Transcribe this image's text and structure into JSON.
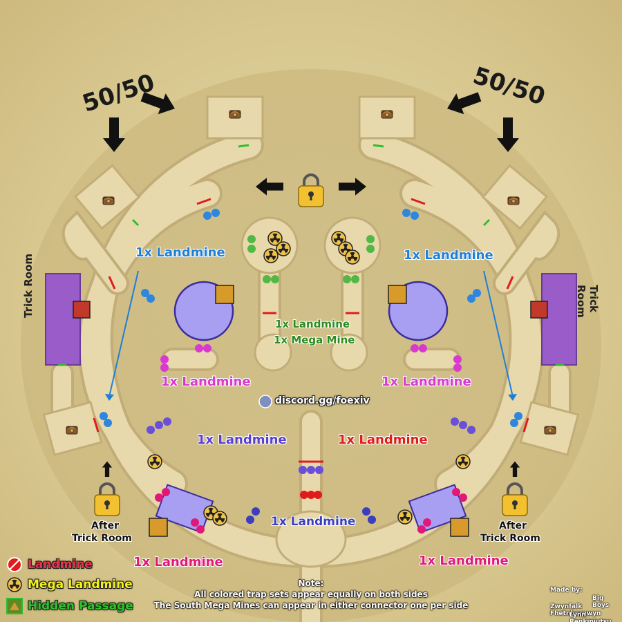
{
  "colors": {
    "floor": "#e8d9ac",
    "floor_edge": "#c9b57f",
    "trick_room": "#9a5cc8",
    "arena": "#a89ff2",
    "landmine_red": "#e01b1b",
    "blue_trap": "#2f86de",
    "pink_trap": "#d83ad0",
    "violet_trap": "#6a4fd8",
    "green_trap": "#52b845",
    "navy_trap": "#3b3fbf",
    "magenta_trap": "#e0187a"
  },
  "labels": {
    "fifty_left": "50/50",
    "fifty_right": "50/50",
    "blue_left": "1x Landmine",
    "blue_right": "1x Landmine",
    "green_center_1": "1x Landmine",
    "green_center_2": "1x Mega Mine",
    "pink_left": "1x Landmine",
    "pink_right": "1x Landmine",
    "violet_left": "1x  Landmine",
    "red_right": "1x  Landmine",
    "navy_bottom": "1x Landmine",
    "magenta_left": "1x Landmine",
    "magenta_right": "1x Landmine",
    "trick_room_left": "Trick Room",
    "trick_room_right": "Trick Room",
    "after_trick_left_1": "After",
    "after_trick_left_2": "Trick Room",
    "after_trick_right_1": "After",
    "after_trick_right_2": "Trick Room",
    "discord": "discord.gg/foexiv"
  },
  "legend": [
    {
      "icon": "landmine-icon",
      "label": "Landmine",
      "color": "#e8324a"
    },
    {
      "icon": "mega-landmine-icon",
      "label": "Mega Landmine",
      "color": "#f5f01c"
    },
    {
      "icon": "hidden-passage-icon",
      "label": "Hidden Passage",
      "color": "#2fbf2a"
    }
  ],
  "note": {
    "title": "Note:",
    "line1": "All colored trap sets appear equally on both sides",
    "line2": "The South Mega Mines can appear in either connector one per side"
  },
  "credits": {
    "made_by": "Made by:",
    "name1": "Big Boys",
    "name2": "Zwynfalk Fhetnborgwyn",
    "name3": "Lynn Renkinjutsu"
  }
}
